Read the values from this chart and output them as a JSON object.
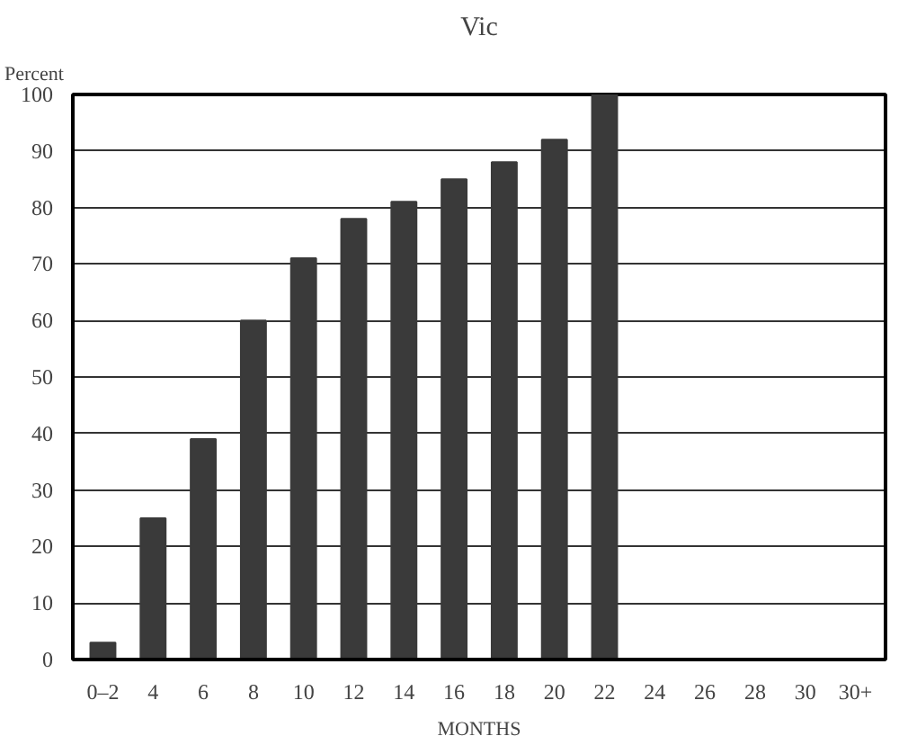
{
  "chart_data": {
    "type": "bar",
    "title": "Vic",
    "xlabel": "MONTHS",
    "ylabel": "Percent",
    "categories": [
      "0–2",
      "4",
      "6",
      "8",
      "10",
      "12",
      "14",
      "16",
      "18",
      "20",
      "22",
      "24",
      "26",
      "28",
      "30",
      "30+"
    ],
    "values": [
      3,
      25,
      39,
      60,
      71,
      78,
      81,
      85,
      88,
      92,
      100,
      null,
      null,
      null,
      null,
      null
    ],
    "color": "#3a3a3a",
    "ylim": [
      0,
      100
    ],
    "yticks": [
      0,
      10,
      20,
      30,
      40,
      50,
      60,
      70,
      80,
      90,
      100
    ],
    "grid": "y"
  }
}
